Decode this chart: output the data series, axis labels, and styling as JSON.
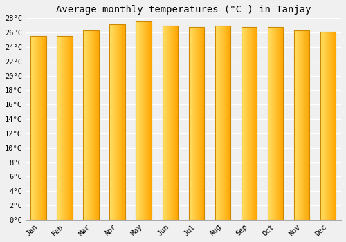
{
  "title": "Average monthly temperatures (°C ) in Tanjay",
  "months": [
    "Jan",
    "Feb",
    "Mar",
    "Apr",
    "May",
    "Jun",
    "Jul",
    "Aug",
    "Sep",
    "Oct",
    "Nov",
    "Dec"
  ],
  "temperatures": [
    25.5,
    25.5,
    26.3,
    27.2,
    27.5,
    27.0,
    26.8,
    27.0,
    26.8,
    26.8,
    26.3,
    26.1
  ],
  "bar_color_left": "#FFE066",
  "bar_color_right": "#FFA500",
  "ylim": [
    0,
    28
  ],
  "ytick_step": 2,
  "background_color": "#f0f0f0",
  "grid_color": "#ffffff",
  "bar_edge_color": "#CC8800",
  "title_fontsize": 10,
  "tick_fontsize": 7.5,
  "bar_width": 0.6
}
